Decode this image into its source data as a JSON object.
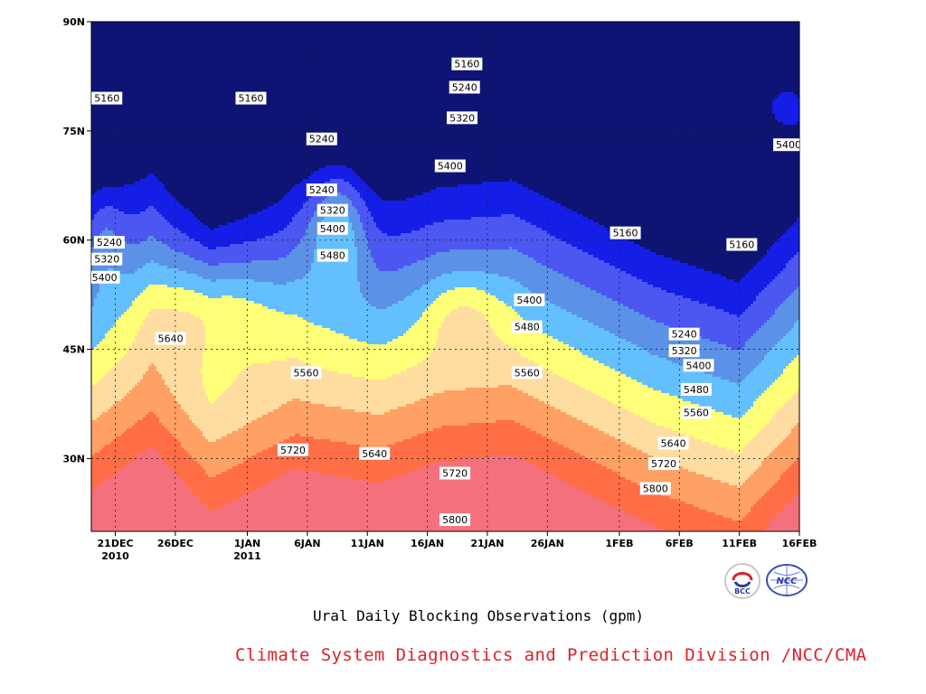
{
  "caption": "Ural Daily Blocking Observations (gpm)",
  "credit": "Climate System Diagnostics and Prediction Division /NCC/CMA",
  "logos": [
    {
      "name": "bcc-logo",
      "text": "BCC"
    },
    {
      "name": "ncc-logo",
      "text": "NCC"
    }
  ],
  "chart_data": {
    "type": "contour",
    "title": "Ural Daily Blocking Observations (gpm)",
    "y_axis": {
      "range": [
        "20N",
        "90N"
      ],
      "ticks": [
        "30N",
        "45N",
        "60N",
        "75N",
        "90N"
      ]
    },
    "x_axis": {
      "range": [
        "2010-12-19",
        "2011-02-16"
      ],
      "ticks": [
        {
          "date": "2010-12-21",
          "label": "21DEC",
          "sublabel": "2010"
        },
        {
          "date": "2010-12-26",
          "label": "26DEC",
          "sublabel": ""
        },
        {
          "date": "2011-01-01",
          "label": "1JAN",
          "sublabel": "2011"
        },
        {
          "date": "2011-01-06",
          "label": "6JAN",
          "sublabel": ""
        },
        {
          "date": "2011-01-11",
          "label": "11JAN",
          "sublabel": ""
        },
        {
          "date": "2011-01-16",
          "label": "16JAN",
          "sublabel": ""
        },
        {
          "date": "2011-01-21",
          "label": "21JAN",
          "sublabel": ""
        },
        {
          "date": "2011-01-26",
          "label": "26JAN",
          "sublabel": ""
        },
        {
          "date": "2011-02-01",
          "label": "1FEB",
          "sublabel": ""
        },
        {
          "date": "2011-02-06",
          "label": "6FEB",
          "sublabel": ""
        },
        {
          "date": "2011-02-11",
          "label": "11FEB",
          "sublabel": ""
        },
        {
          "date": "2011-02-16",
          "label": "16FEB",
          "sublabel": ""
        }
      ]
    },
    "grid": true,
    "contour_levels": [
      5160,
      5240,
      5320,
      5400,
      5480,
      5560,
      5640,
      5720,
      5800
    ],
    "fill_colors": [
      "#0d1473",
      "#141ee6",
      "#4b57f0",
      "#5b91e6",
      "#64bfff",
      "#ffff78",
      "#ffdca0",
      "#ffa064",
      "#ff6e46",
      "#f5707d"
    ],
    "contour_labels": [
      {
        "text": "5160",
        "day": 1.3,
        "lat": 79.5
      },
      {
        "text": "5240",
        "day": 1.5,
        "lat": 59.7
      },
      {
        "text": "5320",
        "day": 1.3,
        "lat": 57.4
      },
      {
        "text": "5400",
        "day": 1.1,
        "lat": 54.9
      },
      {
        "text": "5640",
        "day": 6.6,
        "lat": 46.5
      },
      {
        "text": "5160",
        "day": 13.3,
        "lat": 79.5
      },
      {
        "text": "5240",
        "day": 19.2,
        "lat": 73.9
      },
      {
        "text": "5240",
        "day": 19.2,
        "lat": 66.9
      },
      {
        "text": "5320",
        "day": 20.1,
        "lat": 64.1
      },
      {
        "text": "5400",
        "day": 20.1,
        "lat": 61.6
      },
      {
        "text": "5480",
        "day": 20.1,
        "lat": 57.9
      },
      {
        "text": "5560",
        "day": 17.9,
        "lat": 41.8
      },
      {
        "text": "5720",
        "day": 16.8,
        "lat": 31.2
      },
      {
        "text": "5640",
        "day": 23.6,
        "lat": 30.7
      },
      {
        "text": "5160",
        "day": 31.3,
        "lat": 84.2
      },
      {
        "text": "5240",
        "day": 31.1,
        "lat": 81.0
      },
      {
        "text": "5320",
        "day": 30.9,
        "lat": 76.8
      },
      {
        "text": "5400",
        "day": 29.9,
        "lat": 70.2
      },
      {
        "text": "5720",
        "day": 30.3,
        "lat": 28.0
      },
      {
        "text": "5800",
        "day": 30.3,
        "lat": 21.6
      },
      {
        "text": "5400",
        "day": 36.5,
        "lat": 51.8
      },
      {
        "text": "5480",
        "day": 36.3,
        "lat": 48.1
      },
      {
        "text": "5560",
        "day": 36.3,
        "lat": 41.8
      },
      {
        "text": "5160",
        "day": 44.5,
        "lat": 61.0
      },
      {
        "text": "5240",
        "day": 49.4,
        "lat": 47.1
      },
      {
        "text": "5320",
        "day": 49.4,
        "lat": 44.8
      },
      {
        "text": "5400",
        "day": 50.6,
        "lat": 42.8
      },
      {
        "text": "5480",
        "day": 50.4,
        "lat": 39.5
      },
      {
        "text": "5560",
        "day": 50.4,
        "lat": 36.3
      },
      {
        "text": "5640",
        "day": 48.5,
        "lat": 32.1
      },
      {
        "text": "5720",
        "day": 47.7,
        "lat": 29.3
      },
      {
        "text": "5800",
        "day": 47.0,
        "lat": 25.9
      },
      {
        "text": "5160",
        "day": 54.2,
        "lat": 59.4
      },
      {
        "text": "5400",
        "day": 58.1,
        "lat": 73.1
      }
    ]
  }
}
